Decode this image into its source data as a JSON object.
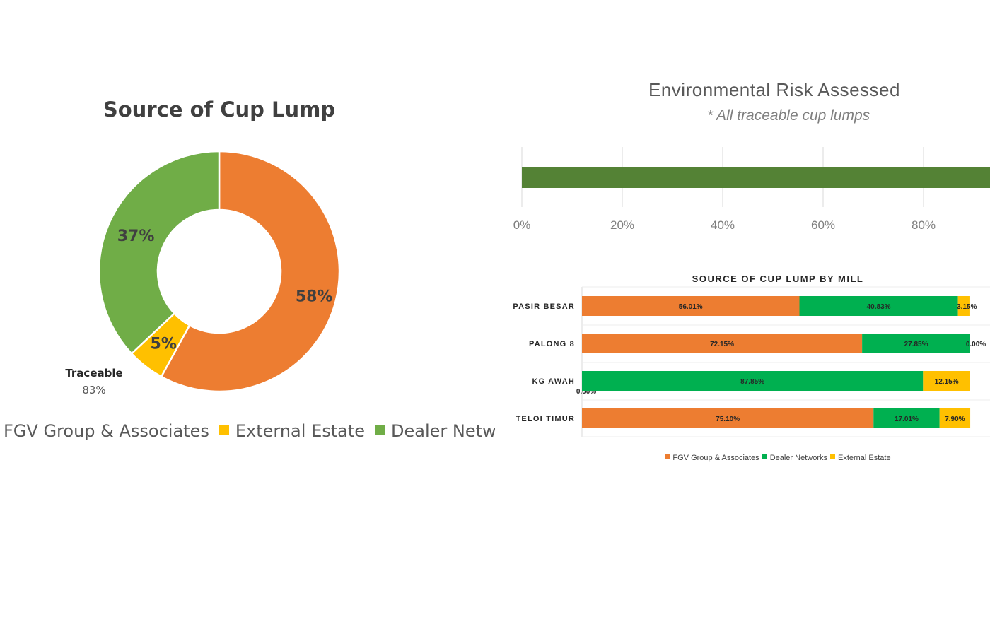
{
  "chart_data": [
    {
      "type": "pie",
      "variant": "donut",
      "title": "Source of Cup Lump",
      "categories": [
        "FGV Group & Associates",
        "External Estate",
        "Dealer Networks"
      ],
      "values": [
        58,
        5,
        37
      ],
      "value_labels": [
        "58%",
        "5%",
        "37%"
      ],
      "colors": [
        "#ED7D31",
        "#FFC000",
        "#70AD47"
      ],
      "annotation": {
        "label": "Traceable",
        "value": "83%"
      },
      "legend": {
        "position": "bottom",
        "entries": [
          "FGV Group & Associates",
          "External Estate",
          "Dealer Networks"
        ]
      }
    },
    {
      "type": "bar",
      "orientation": "horizontal",
      "title": "Environmental Risk Assessed",
      "subtitle": "* All traceable cup lumps",
      "values": [
        100
      ],
      "xlim": [
        0,
        100
      ],
      "xticks": [
        "0%",
        "20%",
        "40%",
        "60%",
        "80%"
      ],
      "grid": true,
      "color": "#548235"
    },
    {
      "type": "bar",
      "orientation": "horizontal",
      "stacked": true,
      "title": "SOURCE OF CUP LUMP BY MILL",
      "categories": [
        "PASIR BESAR",
        "PALONG 8",
        "KG AWAH",
        "TELOI TIMUR"
      ],
      "series": [
        {
          "name": "FGV Group & Associates",
          "color": "#ED7D31",
          "values": [
            56.01,
            72.15,
            0.0,
            75.1
          ],
          "labels": [
            "56.01%",
            "72.15%",
            "0.00%",
            "75.10%"
          ]
        },
        {
          "name": "Dealer Networks",
          "color": "#00B050",
          "values": [
            40.83,
            27.85,
            87.85,
            17.01
          ],
          "labels": [
            "40.83%",
            "27.85%",
            "87.85%",
            "17.01%"
          ]
        },
        {
          "name": "External Estate",
          "color": "#FFC000",
          "values": [
            3.15,
            0.0,
            12.15,
            7.9
          ],
          "labels": [
            "3.15%",
            "0.00%",
            "12.15%",
            "7.90%"
          ]
        }
      ],
      "xlim": [
        0,
        100
      ],
      "legend": {
        "position": "bottom"
      }
    }
  ]
}
